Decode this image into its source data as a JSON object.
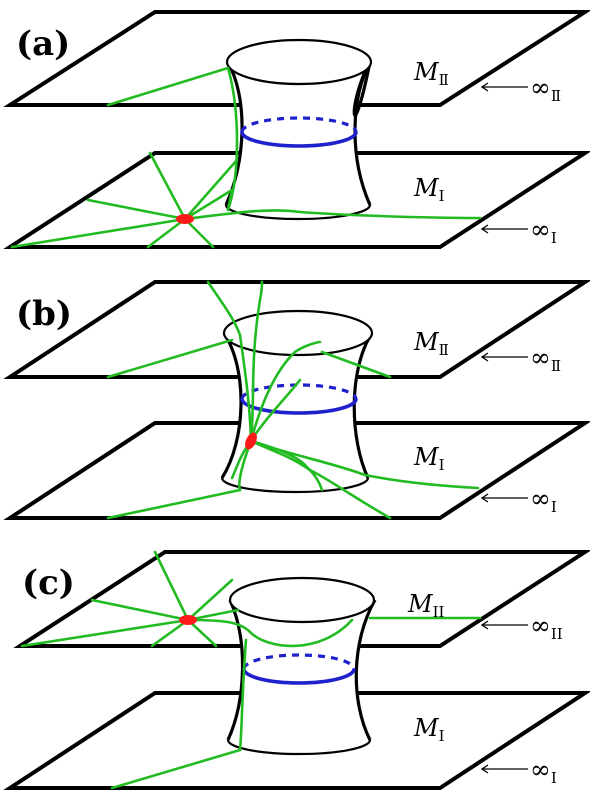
{
  "panels": [
    {
      "label": "(a)",
      "sheet_upper": "M",
      "sheet_upper_sub": "Ⅱ",
      "sheet_lower": "M",
      "sheet_lower_sub": "I",
      "inf_upper": "∞",
      "inf_upper_sub": "Ⅱ",
      "inf_lower": "∞",
      "inf_lower_sub": "I"
    },
    {
      "label": "(b)",
      "sheet_upper": "M",
      "sheet_upper_sub": "Ⅱ",
      "sheet_lower": "M",
      "sheet_lower_sub": "I",
      "inf_upper": "∞",
      "inf_upper_sub": "Ⅱ",
      "inf_lower": "∞",
      "inf_lower_sub": "I"
    },
    {
      "label": "(c)",
      "sheet_upper": "M",
      "sheet_upper_sub": "II",
      "sheet_lower": "M",
      "sheet_lower_sub": "I",
      "inf_upper": "∞",
      "inf_upper_sub": "II",
      "inf_lower": "∞",
      "inf_lower_sub": "I"
    }
  ],
  "colors": {
    "geodesic": "#22bb22",
    "throat": "#1f22cc",
    "point": "#ff1a1a"
  }
}
